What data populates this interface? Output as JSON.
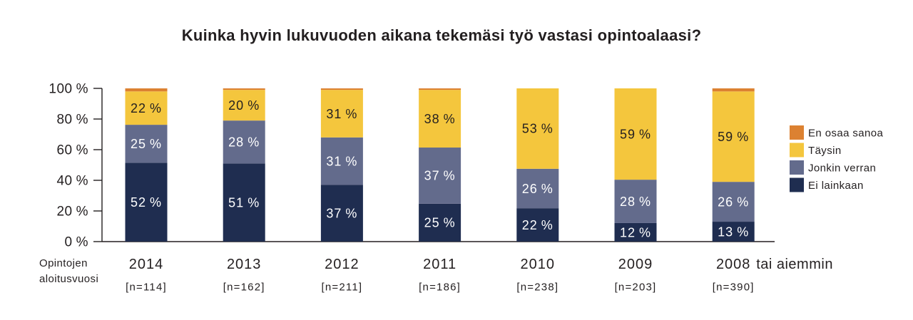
{
  "chart_data": {
    "type": "bar",
    "stacked": true,
    "percent_stacked": true,
    "title": "Kuinka hyvin lukuvuoden aikana tekemäsi työ vastasi opintoalaasi?",
    "xlabel": "Opintojen aloitusvuosi",
    "categories": [
      "2014",
      "2013",
      "2012",
      "2011",
      "2010",
      "2009",
      "2008"
    ],
    "category_note": "tai aiemmin",
    "sample_sizes": [
      "[n=114]",
      "[n=162]",
      "[n=211]",
      "[n=186]",
      "[n=238]",
      "[n=203]",
      "[n=390]"
    ],
    "unit": "%",
    "yticks": [
      0,
      20,
      40,
      60,
      80,
      100
    ],
    "ylim": [
      0,
      100
    ],
    "grid": false,
    "legend": "right",
    "series": [
      {
        "name": "Ei lainkaan",
        "color": "#1f2d50",
        "label_color": "#ffffff",
        "show_labels": true,
        "values": [
          52,
          51,
          37,
          25,
          22,
          12,
          13
        ]
      },
      {
        "name": "Jonkin verran",
        "color": "#636b8c",
        "label_color": "#ffffff",
        "show_labels": true,
        "values": [
          25,
          28,
          31,
          37,
          26,
          28,
          26
        ]
      },
      {
        "name": "Täysin",
        "color": "#f4c63d",
        "label_color": "#231f20",
        "show_labels": true,
        "values": [
          22,
          20,
          31,
          38,
          53,
          59,
          59
        ]
      },
      {
        "name": "En osaa sanoa",
        "color": "#dc8131",
        "show_labels": false,
        "values": [
          2,
          1,
          1,
          1,
          0,
          0,
          2
        ]
      }
    ]
  }
}
